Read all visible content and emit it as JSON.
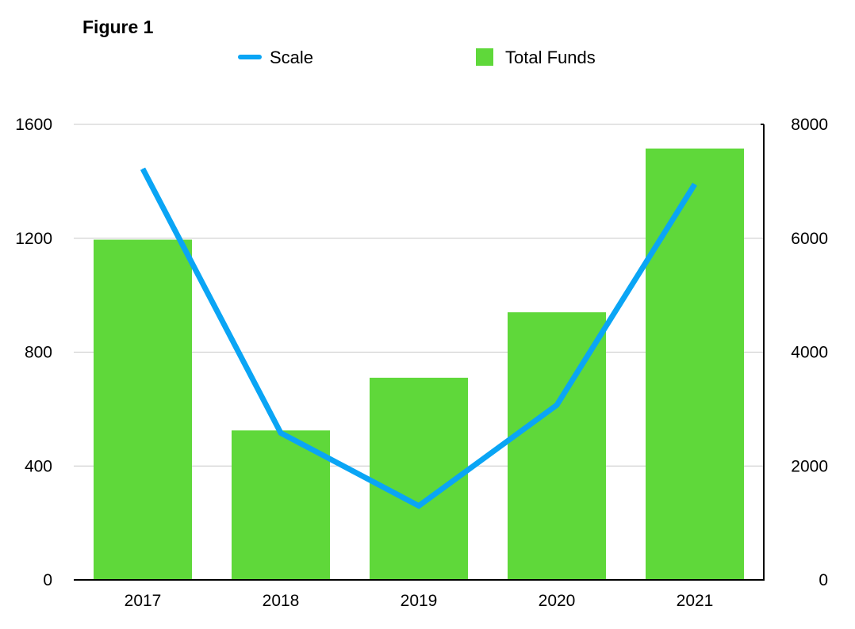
{
  "figure_label": "Figure 1",
  "colors": {
    "bars": "#5fd83a",
    "line": "#0aa5f5",
    "grid": "#c8c8c8",
    "axis": "#000000"
  },
  "chart_data": {
    "type": "bar",
    "title": "",
    "xlabel": "",
    "ylabel": "",
    "y2label": "",
    "categories": [
      "2017",
      "2018",
      "2019",
      "2020",
      "2021"
    ],
    "series": [
      {
        "name": "Total Funds",
        "type": "bar",
        "axis": "left",
        "values": [
          1195,
          525,
          710,
          940,
          1515
        ]
      },
      {
        "name": "Scale",
        "type": "line",
        "axis": "right",
        "values": [
          7220,
          2580,
          1300,
          3070,
          6950
        ]
      }
    ],
    "ylim": [
      0,
      1600
    ],
    "y_ticks": [
      "0",
      "400",
      "800",
      "1200",
      "1600"
    ],
    "y2lim": [
      0,
      8000
    ],
    "y2_ticks": [
      "0",
      "2000",
      "4000",
      "6000",
      "8000"
    ],
    "grid": true,
    "legend": "top-center"
  }
}
